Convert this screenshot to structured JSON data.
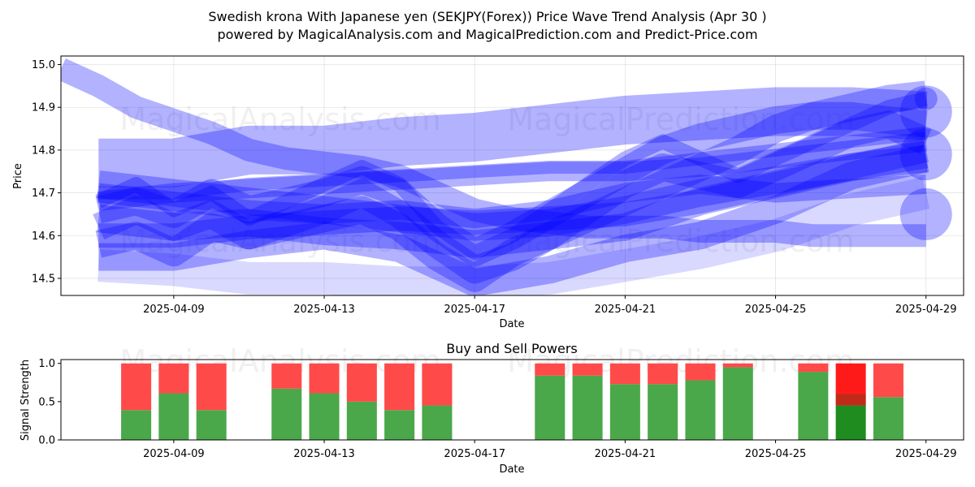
{
  "figure": {
    "title_line1": "Swedish krona With Japanese yen (SEKJPY(Forex)) Price Wave Trend Analysis (Apr 30 )",
    "title_line2": "powered by MagicalAnalysis.com and MagicalPrediction.com and Predict-Price.com",
    "watermarks": [
      "MagicalAnalysis.com",
      "MagicalPrediction.com"
    ]
  },
  "chart_data": [
    {
      "type": "line",
      "subtitle": "",
      "xlabel": "Date",
      "ylabel": "Price",
      "ylim": [
        14.46,
        15.02
      ],
      "xlim": [
        "2025-04-06",
        "2025-04-30"
      ],
      "yticks": [
        14.5,
        14.6,
        14.7,
        14.8,
        14.9,
        15.0
      ],
      "xticks": [
        "2025-04-09",
        "2025-04-13",
        "2025-04-17",
        "2025-04-21",
        "2025-04-25",
        "2025-04-29"
      ],
      "grid": true,
      "colors": {
        "wave": "#0000ff"
      },
      "series": [
        {
          "opacity": 0.3,
          "width": 28,
          "x": [
            "2025-04-06",
            "2025-04-07",
            "2025-04-08",
            "2025-04-09",
            "2025-04-10",
            "2025-04-11",
            "2025-04-12",
            "2025-04-13",
            "2025-04-14",
            "2025-04-15",
            "2025-04-16",
            "2025-04-17",
            "2025-04-18",
            "2025-04-19",
            "2025-04-20",
            "2025-04-21",
            "2025-04-22",
            "2025-04-23",
            "2025-04-24",
            "2025-04-25",
            "2025-04-26",
            "2025-04-27",
            "2025-04-28",
            "2025-04-29"
          ],
          "y": [
            14.99,
            14.95,
            14.9,
            14.87,
            14.84,
            14.8,
            14.78,
            14.77,
            14.76,
            14.74,
            14.7,
            14.66,
            14.64,
            14.63,
            14.62,
            14.62,
            14.62,
            14.61,
            14.61,
            14.61,
            14.6,
            14.6,
            14.6,
            14.6
          ]
        },
        {
          "opacity": 0.3,
          "width": 60,
          "x": [
            "2025-04-07",
            "2025-04-09",
            "2025-04-11",
            "2025-04-13",
            "2025-04-15",
            "2025-04-17",
            "2025-04-19",
            "2025-04-21",
            "2025-04-23",
            "2025-04-25",
            "2025-04-27",
            "2025-04-29"
          ],
          "y": [
            14.77,
            14.77,
            14.8,
            14.8,
            14.82,
            14.83,
            14.85,
            14.87,
            14.88,
            14.89,
            14.89,
            14.88
          ]
        },
        {
          "opacity": 0.3,
          "width": 30,
          "x": [
            "2025-04-07",
            "2025-04-09",
            "2025-04-11",
            "2025-04-13",
            "2025-04-15",
            "2025-04-17",
            "2025-04-19",
            "2025-04-21",
            "2025-04-23",
            "2025-04-25",
            "2025-04-27",
            "2025-04-29"
          ],
          "y": [
            14.6,
            14.6,
            14.62,
            14.63,
            14.64,
            14.63,
            14.64,
            14.65,
            14.68,
            14.72,
            14.76,
            14.8
          ]
        },
        {
          "opacity": 0.3,
          "width": 34,
          "x": [
            "2025-04-07",
            "2025-04-08",
            "2025-04-09",
            "2025-04-10",
            "2025-04-11",
            "2025-04-12",
            "2025-04-13",
            "2025-04-14",
            "2025-04-15",
            "2025-04-16",
            "2025-04-17",
            "2025-04-18",
            "2025-04-19",
            "2025-04-20",
            "2025-04-21",
            "2025-04-22",
            "2025-04-23",
            "2025-04-24",
            "2025-04-25",
            "2025-04-26",
            "2025-04-27",
            "2025-04-28",
            "2025-04-29"
          ],
          "y": [
            14.66,
            14.68,
            14.65,
            14.7,
            14.66,
            14.68,
            14.7,
            14.73,
            14.7,
            14.62,
            14.56,
            14.6,
            14.65,
            14.7,
            14.75,
            14.8,
            14.83,
            14.85,
            14.87,
            14.88,
            14.88,
            14.87,
            14.86
          ]
        },
        {
          "opacity": 0.3,
          "width": 34,
          "x": [
            "2025-04-07",
            "2025-04-08",
            "2025-04-09",
            "2025-04-10",
            "2025-04-11",
            "2025-04-12",
            "2025-04-13",
            "2025-04-14",
            "2025-04-15",
            "2025-04-16",
            "2025-04-17",
            "2025-04-18",
            "2025-04-19",
            "2025-04-20",
            "2025-04-21",
            "2025-04-22",
            "2025-04-23",
            "2025-04-24",
            "2025-04-25",
            "2025-04-26",
            "2025-04-27",
            "2025-04-28",
            "2025-04-29"
          ],
          "y": [
            14.62,
            14.66,
            14.62,
            14.65,
            14.6,
            14.63,
            14.66,
            14.7,
            14.65,
            14.58,
            14.52,
            14.55,
            14.6,
            14.66,
            14.72,
            14.76,
            14.74,
            14.72,
            14.76,
            14.8,
            14.84,
            14.86,
            14.82
          ]
        },
        {
          "opacity": 0.3,
          "width": 34,
          "x": [
            "2025-04-07",
            "2025-04-09",
            "2025-04-11",
            "2025-04-13",
            "2025-04-15",
            "2025-04-17",
            "2025-04-19",
            "2025-04-21",
            "2025-04-23",
            "2025-04-25",
            "2025-04-27",
            "2025-04-29"
          ],
          "y": [
            14.64,
            14.62,
            14.63,
            14.61,
            14.6,
            14.58,
            14.6,
            14.62,
            14.68,
            14.72,
            14.76,
            14.79
          ]
        },
        {
          "opacity": 0.3,
          "width": 34,
          "x": [
            "2025-04-07",
            "2025-04-08",
            "2025-04-09",
            "2025-04-10",
            "2025-04-11",
            "2025-04-12",
            "2025-04-13",
            "2025-04-14",
            "2025-04-15",
            "2025-04-16",
            "2025-04-17",
            "2025-04-18",
            "2025-04-19",
            "2025-04-20",
            "2025-04-21",
            "2025-04-22",
            "2025-04-23",
            "2025-04-24",
            "2025-04-25",
            "2025-04-26",
            "2025-04-27",
            "2025-04-28",
            "2025-04-29"
          ],
          "y": [
            14.58,
            14.6,
            14.56,
            14.62,
            14.6,
            14.62,
            14.64,
            14.66,
            14.62,
            14.55,
            14.5,
            14.56,
            14.6,
            14.64,
            14.68,
            14.72,
            14.76,
            14.8,
            14.85,
            14.88,
            14.9,
            14.92,
            14.93
          ]
        },
        {
          "opacity": 0.3,
          "width": 34,
          "x": [
            "2025-04-07",
            "2025-04-09",
            "2025-04-11",
            "2025-04-13",
            "2025-04-15",
            "2025-04-17",
            "2025-04-19",
            "2025-04-21",
            "2025-04-23",
            "2025-04-25",
            "2025-04-27",
            "2025-04-29"
          ],
          "y": [
            14.55,
            14.55,
            14.58,
            14.6,
            14.57,
            14.49,
            14.52,
            14.57,
            14.6,
            14.66,
            14.74,
            14.78
          ]
        },
        {
          "opacity": 0.3,
          "width": 34,
          "x": [
            "2025-04-07",
            "2025-04-09",
            "2025-04-11",
            "2025-04-13",
            "2025-04-15",
            "2025-04-17",
            "2025-04-19",
            "2025-04-21",
            "2025-04-23",
            "2025-04-25",
            "2025-04-27",
            "2025-04-29"
          ],
          "y": [
            14.72,
            14.7,
            14.68,
            14.66,
            14.64,
            14.62,
            14.63,
            14.66,
            14.7,
            14.73,
            14.76,
            14.78
          ]
        },
        {
          "opacity": 0.15,
          "width": 40,
          "x": [
            "2025-04-07",
            "2025-04-09",
            "2025-04-11",
            "2025-04-13",
            "2025-04-15",
            "2025-04-17",
            "2025-04-19",
            "2025-04-21",
            "2025-04-23",
            "2025-04-25",
            "2025-04-27",
            "2025-04-29"
          ],
          "y": [
            14.53,
            14.52,
            14.5,
            14.5,
            14.49,
            14.49,
            14.5,
            14.53,
            14.56,
            14.6,
            14.66,
            14.7
          ]
        },
        {
          "opacity": 0.3,
          "width": 18,
          "x": [
            "2025-04-07",
            "2025-04-08",
            "2025-04-09",
            "2025-04-10",
            "2025-04-11",
            "2025-04-12",
            "2025-04-13",
            "2025-04-14",
            "2025-04-15",
            "2025-04-16",
            "2025-04-17",
            "2025-04-18",
            "2025-04-19",
            "2025-04-20",
            "2025-04-21",
            "2025-04-22",
            "2025-04-23",
            "2025-04-24",
            "2025-04-25",
            "2025-04-26",
            "2025-04-27",
            "2025-04-28",
            "2025-04-29"
          ],
          "y": [
            14.68,
            14.72,
            14.66,
            14.7,
            14.64,
            14.68,
            14.72,
            14.76,
            14.72,
            14.62,
            14.56,
            14.6,
            14.66,
            14.72,
            14.78,
            14.82,
            14.78,
            14.74,
            14.78,
            14.82,
            14.86,
            14.9,
            14.92
          ]
        },
        {
          "opacity": 0.3,
          "width": 24,
          "x": [
            "2025-04-07",
            "2025-04-09",
            "2025-04-11",
            "2025-04-13",
            "2025-04-15",
            "2025-04-17",
            "2025-04-19",
            "2025-04-21",
            "2025-04-23",
            "2025-04-25",
            "2025-04-27",
            "2025-04-29"
          ],
          "y": [
            14.68,
            14.7,
            14.71,
            14.72,
            14.73,
            14.74,
            14.75,
            14.75,
            14.76,
            14.78,
            14.8,
            14.82
          ]
        },
        {
          "opacity": 0.3,
          "width": 16,
          "x": [
            "2025-04-07",
            "2025-04-09",
            "2025-04-11",
            "2025-04-13",
            "2025-04-15",
            "2025-04-17",
            "2025-04-19",
            "2025-04-21",
            "2025-04-23",
            "2025-04-25",
            "2025-04-27",
            "2025-04-29"
          ],
          "y": [
            14.7,
            14.7,
            14.72,
            14.73,
            14.74,
            14.75,
            14.76,
            14.76,
            14.78,
            14.8,
            14.82,
            14.84
          ]
        },
        {
          "opacity": 0.3,
          "width": 24,
          "x": [
            "2025-04-07",
            "2025-04-09",
            "2025-04-11",
            "2025-04-13",
            "2025-04-15",
            "2025-04-17",
            "2025-04-19",
            "2025-04-21",
            "2025-04-23",
            "2025-04-25",
            "2025-04-27",
            "2025-04-29"
          ],
          "y": [
            14.7,
            14.68,
            14.66,
            14.65,
            14.66,
            14.64,
            14.66,
            14.7,
            14.72,
            14.7,
            14.71,
            14.72
          ]
        }
      ],
      "end_markers": [
        {
          "x": "2025-04-29",
          "y": 14.89,
          "opacity": 0.3
        },
        {
          "x": "2025-04-29",
          "y": 14.79,
          "opacity": 0.3
        },
        {
          "x": "2025-04-29",
          "y": 14.65,
          "opacity": 0.3
        },
        {
          "x": "2025-04-29",
          "y": 14.92,
          "opacity": 0.3
        }
      ]
    },
    {
      "type": "bar",
      "subtitle": "Buy and Sell Powers",
      "xlabel": "Date",
      "ylabel": "Signal Strength",
      "ylim": [
        0,
        1.05
      ],
      "xlim": [
        "2025-04-06",
        "2025-04-30"
      ],
      "yticks": [
        0.0,
        0.5,
        1.0
      ],
      "xticks": [
        "2025-04-09",
        "2025-04-13",
        "2025-04-17",
        "2025-04-21",
        "2025-04-25",
        "2025-04-29"
      ],
      "colors": {
        "buy": "#4aa84a",
        "sell": "#ff4a4a",
        "buy_strong": "#1f8c1f",
        "sell_strong": "#ff1a1a"
      },
      "categories": [
        "2025-04-08",
        "2025-04-09",
        "2025-04-10",
        "2025-04-12",
        "2025-04-13",
        "2025-04-14",
        "2025-04-15",
        "2025-04-16",
        "2025-04-19",
        "2025-04-20",
        "2025-04-21",
        "2025-04-22",
        "2025-04-23",
        "2025-04-24",
        "2025-04-26",
        "2025-04-27",
        "2025-04-28"
      ],
      "series": [
        {
          "name": "Buy",
          "values": [
            0.39,
            0.61,
            0.39,
            0.67,
            0.61,
            0.5,
            0.39,
            0.45,
            0.84,
            0.84,
            0.73,
            0.73,
            0.78,
            0.95,
            0.89,
            0.45,
            0.56
          ]
        },
        {
          "name": "Sell",
          "values": [
            0.61,
            0.39,
            0.61,
            0.33,
            0.39,
            0.5,
            0.61,
            0.55,
            0.16,
            0.16,
            0.27,
            0.27,
            0.22,
            0.05,
            0.11,
            0.55,
            0.44
          ]
        }
      ],
      "strong": [
        false,
        false,
        false,
        false,
        false,
        false,
        false,
        false,
        false,
        false,
        false,
        false,
        false,
        false,
        false,
        true,
        false
      ]
    }
  ]
}
